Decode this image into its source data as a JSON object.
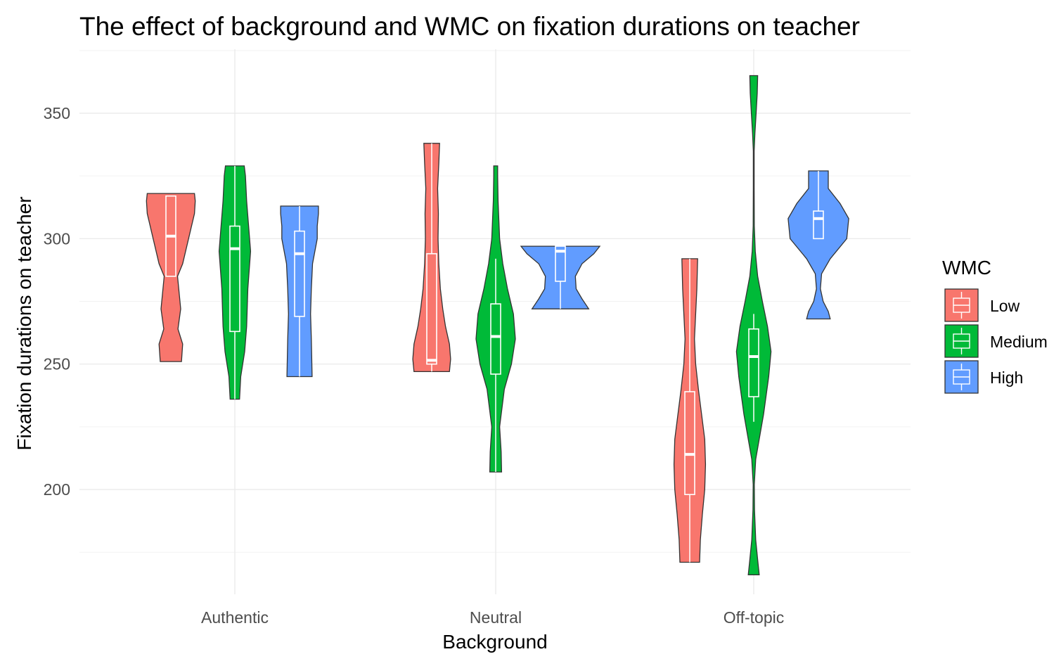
{
  "chart_data": {
    "type": "violin",
    "title": "The effect of background and WMC on fixation durations on teacher",
    "xlabel": "Background",
    "ylabel": "Fixation durations on teacher",
    "categories": [
      "Authentic",
      "Neutral",
      "Off-topic"
    ],
    "ylim": [
      162,
      374
    ],
    "yticks": [
      200,
      250,
      300,
      350
    ],
    "grid": true,
    "legend": {
      "title": "WMC",
      "position": "right",
      "entries": [
        {
          "name": "Low",
          "color": "#F8766D"
        },
        {
          "name": "Medium",
          "color": "#00BA38"
        },
        {
          "name": "High",
          "color": "#619CFF"
        }
      ]
    },
    "series": [
      {
        "name": "Low",
        "color": "#F8766D",
        "violins": [
          {
            "category": "Authentic",
            "min": 251,
            "max": 318,
            "profile": [
              [
                251,
                0.27
              ],
              [
                258,
                0.3
              ],
              [
                264,
                0.18
              ],
              [
                272,
                0.25
              ],
              [
                285,
                0.17
              ],
              [
                290,
                0.3
              ],
              [
                300,
                0.45
              ],
              [
                310,
                0.6
              ],
              [
                315,
                0.62
              ],
              [
                318,
                0.6
              ]
            ],
            "box": {
              "q1": 285,
              "median": 301,
              "q3": 317,
              "lower": 285,
              "upper": 317
            }
          },
          {
            "category": "Neutral",
            "min": 247,
            "max": 338,
            "profile": [
              [
                247,
                0.45
              ],
              [
                252,
                0.48
              ],
              [
                258,
                0.45
              ],
              [
                265,
                0.35
              ],
              [
                272,
                0.28
              ],
              [
                280,
                0.22
              ],
              [
                290,
                0.18
              ],
              [
                300,
                0.16
              ],
              [
                310,
                0.17
              ],
              [
                320,
                0.15
              ],
              [
                330,
                0.18
              ],
              [
                338,
                0.2
              ]
            ],
            "box": {
              "q1": 250,
              "median": 251.5,
              "q3": 294,
              "lower": 247,
              "upper": 338
            }
          },
          {
            "category": "Off-topic",
            "min": 171,
            "max": 292,
            "profile": [
              [
                171,
                0.25
              ],
              [
                180,
                0.27
              ],
              [
                190,
                0.32
              ],
              [
                200,
                0.38
              ],
              [
                210,
                0.4
              ],
              [
                220,
                0.38
              ],
              [
                230,
                0.3
              ],
              [
                240,
                0.22
              ],
              [
                250,
                0.15
              ],
              [
                260,
                0.12
              ],
              [
                270,
                0.15
              ],
              [
                280,
                0.18
              ],
              [
                292,
                0.2
              ]
            ],
            "box": {
              "q1": 198,
              "median": 214,
              "q3": 239,
              "lower": 171,
              "upper": 292
            }
          }
        ]
      },
      {
        "name": "Medium",
        "color": "#00BA38",
        "violins": [
          {
            "category": "Authentic",
            "min": 236,
            "max": 329,
            "profile": [
              [
                236,
                0.12
              ],
              [
                245,
                0.15
              ],
              [
                255,
                0.25
              ],
              [
                265,
                0.3
              ],
              [
                280,
                0.33
              ],
              [
                295,
                0.4
              ],
              [
                305,
                0.35
              ],
              [
                315,
                0.3
              ],
              [
                325,
                0.27
              ],
              [
                329,
                0.24
              ]
            ],
            "box": {
              "q1": 263,
              "median": 296,
              "q3": 305,
              "lower": 236,
              "upper": 329
            }
          },
          {
            "category": "Neutral",
            "min": 207,
            "max": 329,
            "profile": [
              [
                207,
                0.15
              ],
              [
                215,
                0.14
              ],
              [
                225,
                0.1
              ],
              [
                240,
                0.22
              ],
              [
                250,
                0.4
              ],
              [
                260,
                0.5
              ],
              [
                270,
                0.45
              ],
              [
                280,
                0.3
              ],
              [
                290,
                0.18
              ],
              [
                300,
                0.1
              ],
              [
                315,
                0.06
              ],
              [
                325,
                0.05
              ],
              [
                329,
                0.05
              ]
            ],
            "box": {
              "q1": 246,
              "median": 261,
              "q3": 274,
              "lower": 207,
              "upper": 292
            }
          },
          {
            "category": "Off-topic",
            "min": 166,
            "max": 365,
            "profile": [
              [
                166,
                0.14
              ],
              [
                172,
                0.1
              ],
              [
                180,
                0.05
              ],
              [
                192,
                0.02
              ],
              [
                202,
                0.015
              ],
              [
                212,
                0.05
              ],
              [
                230,
                0.25
              ],
              [
                245,
                0.38
              ],
              [
                255,
                0.44
              ],
              [
                265,
                0.35
              ],
              [
                275,
                0.22
              ],
              [
                285,
                0.1
              ],
              [
                295,
                0.04
              ],
              [
                305,
                0.015
              ],
              [
                320,
                0.01
              ],
              [
                335,
                0.01
              ],
              [
                342,
                0.03
              ],
              [
                350,
                0.06
              ],
              [
                358,
                0.09
              ],
              [
                365,
                0.1
              ]
            ],
            "box": {
              "q1": 237,
              "median": 253,
              "q3": 264,
              "lower": 227,
              "upper": 270
            }
          }
        ]
      },
      {
        "name": "High",
        "color": "#619CFF",
        "violins": [
          {
            "category": "Authentic",
            "min": 245,
            "max": 313,
            "profile": [
              [
                245,
                0.32
              ],
              [
                260,
                0.3
              ],
              [
                270,
                0.28
              ],
              [
                280,
                0.3
              ],
              [
                290,
                0.33
              ],
              [
                300,
                0.45
              ],
              [
                305,
                0.45
              ],
              [
                310,
                0.48
              ],
              [
                313,
                0.48
              ]
            ],
            "box": {
              "q1": 269,
              "median": 294,
              "q3": 303,
              "lower": 245,
              "upper": 313
            }
          },
          {
            "category": "Neutral",
            "min": 272,
            "max": 297,
            "profile": [
              [
                272,
                0.72
              ],
              [
                276,
                0.55
              ],
              [
                280,
                0.4
              ],
              [
                285,
                0.38
              ],
              [
                290,
                0.55
              ],
              [
                294,
                0.85
              ],
              [
                297,
                1.0
              ]
            ],
            "box": {
              "q1": 283,
              "median": 295,
              "q3": 297,
              "lower": 272,
              "upper": 297
            }
          },
          {
            "category": "Off-topic",
            "min": 268,
            "max": 327,
            "profile": [
              [
                268,
                0.3
              ],
              [
                271,
                0.25
              ],
              [
                275,
                0.12
              ],
              [
                280,
                0.05
              ],
              [
                286,
                0.08
              ],
              [
                292,
                0.3
              ],
              [
                300,
                0.72
              ],
              [
                308,
                0.77
              ],
              [
                314,
                0.55
              ],
              [
                320,
                0.25
              ],
              [
                327,
                0.25
              ]
            ],
            "box": {
              "q1": 300,
              "median": 308,
              "q3": 311,
              "lower": 300,
              "upper": 327
            }
          }
        ]
      }
    ]
  }
}
